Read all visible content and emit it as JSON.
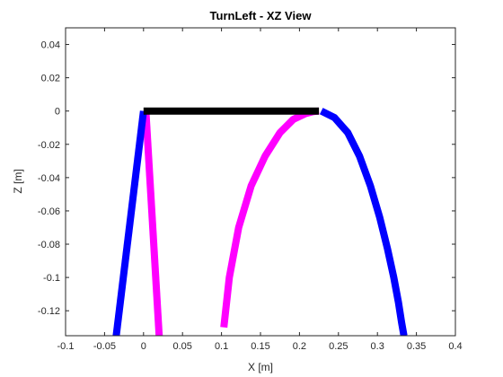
{
  "chart_data": {
    "type": "line",
    "title": "TurnLeft - XZ View",
    "xlabel": "X [m]",
    "ylabel": "Z [m]",
    "xlim": [
      -0.1,
      0.4
    ],
    "ylim": [
      -0.135,
      0.05
    ],
    "xticks": [
      -0.1,
      -0.05,
      0,
      0.05,
      0.1,
      0.15,
      0.2,
      0.25,
      0.3,
      0.35,
      0.4
    ],
    "xtick_labels": [
      "-0.1",
      "-0.05",
      "0",
      "0.05",
      "0.1",
      "0.15",
      "0.2",
      "0.25",
      "0.3",
      "0.35",
      "0.4"
    ],
    "yticks": [
      0.04,
      0.02,
      0,
      -0.02,
      -0.04,
      -0.06,
      -0.08,
      -0.1,
      -0.12
    ],
    "ytick_labels": [
      "0.04",
      "0.02",
      "0",
      "-0.02",
      "-0.04",
      "-0.06",
      "-0.08",
      "-0.1",
      "-0.12"
    ],
    "grid": false,
    "legend": false,
    "series": [
      {
        "color": "#ff00ff",
        "x": [
          0.003,
          0.02
        ],
        "y": [
          0.0,
          -0.135
        ]
      },
      {
        "color": "#0000ff",
        "x": [
          0.0,
          -0.035
        ],
        "y": [
          0.0,
          -0.135
        ]
      },
      {
        "color": "#ff00ff",
        "x": [
          0.103,
          0.11,
          0.122,
          0.138,
          0.156,
          0.175,
          0.192,
          0.208,
          0.218,
          0.225
        ],
        "y": [
          -0.13,
          -0.1,
          -0.07,
          -0.045,
          -0.027,
          -0.013,
          -0.005,
          -0.0015,
          -0.0003,
          0.0
        ]
      },
      {
        "color": "#0000ff",
        "x": [
          0.228,
          0.245,
          0.262,
          0.277,
          0.291,
          0.303,
          0.313,
          0.321,
          0.327,
          0.331,
          0.334
        ],
        "y": [
          0.0,
          -0.004,
          -0.013,
          -0.027,
          -0.045,
          -0.064,
          -0.083,
          -0.1,
          -0.115,
          -0.127,
          -0.135
        ]
      },
      {
        "color": "#000000",
        "x": [
          0.0,
          0.225
        ],
        "y": [
          0.0,
          0.0
        ]
      }
    ]
  }
}
